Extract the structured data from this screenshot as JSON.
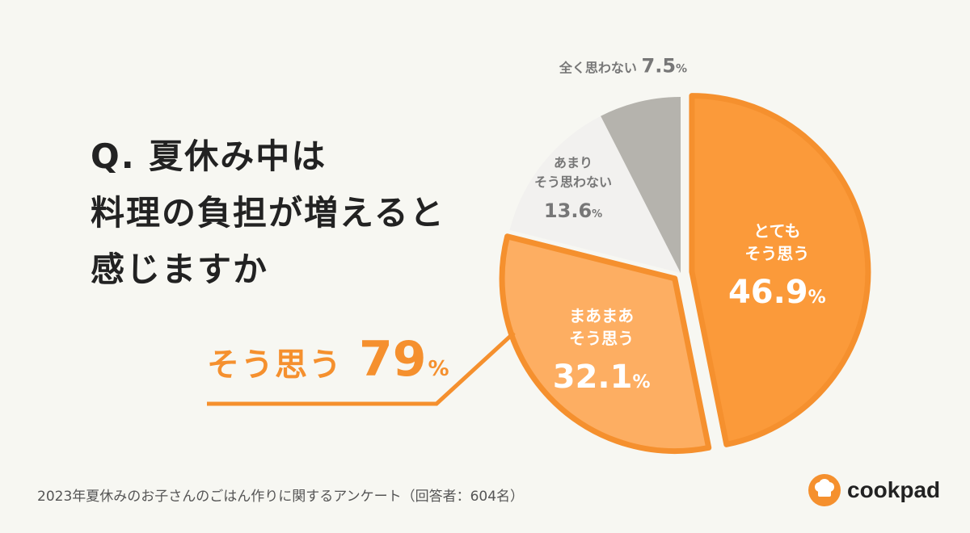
{
  "question": {
    "lines": [
      "Q. 夏休み中は",
      "料理の負担が増えると",
      "感じますか"
    ]
  },
  "summary": {
    "label": "そう思う",
    "value": "79",
    "unit": "%"
  },
  "footnote": "2023年夏休みのお子さんのごはん作りに関するアンケート（回答者：604名）",
  "brand": {
    "name": "cookpad",
    "logo_icon": "chef-hat-icon"
  },
  "colors": {
    "background": "#f7f7f2",
    "accent": "#f5902e",
    "very_agree": "#fb9a3a",
    "somewhat_agree": "#fdae62",
    "somewhat_disagree": "#f2f1ef",
    "strongly_disagree": "#b5b3ad"
  },
  "chart_data": {
    "type": "pie",
    "start": "top, clockwise",
    "slices": [
      {
        "label_lines": [
          "とても",
          "そう思う"
        ],
        "value": 46.9,
        "value_text": "46.9",
        "unit": "%",
        "color": "#fb9a3a"
      },
      {
        "label_lines": [
          "まあまあ",
          "そう思う"
        ],
        "value": 32.1,
        "value_text": "32.1",
        "unit": "%",
        "color": "#fdae62"
      },
      {
        "label_lines": [
          "あまり",
          "そう思わない"
        ],
        "value": 13.6,
        "value_text": "13.6",
        "unit": "%",
        "color": "#f2f1ef"
      },
      {
        "label_lines": [
          "全く思わない"
        ],
        "value": 7.5,
        "value_text": "7.5",
        "unit": "%",
        "color": "#b5b3ad"
      }
    ]
  }
}
